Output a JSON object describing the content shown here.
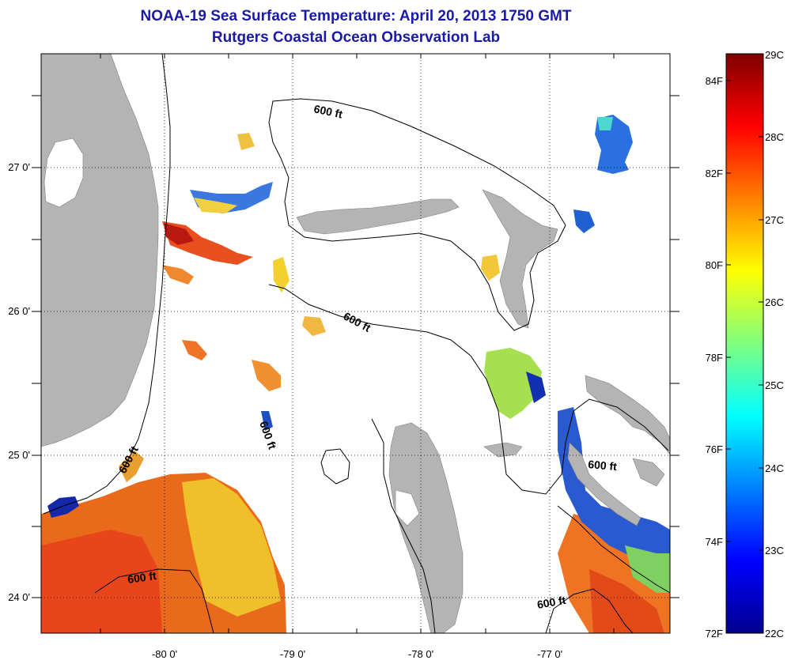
{
  "header": {
    "title": "NOAA-19 Sea Surface Temperature:  April 20, 2013 1750 GMT",
    "subtitle": "Rutgers Coastal Ocean Observation Lab"
  },
  "map": {
    "lon_ticks": [
      {
        "value": -80,
        "label": "-80 0'"
      },
      {
        "value": -79,
        "label": "-79 0'"
      },
      {
        "value": -78,
        "label": "-78 0'"
      },
      {
        "value": -77,
        "label": "-77 0'"
      }
    ],
    "lat_ticks": [
      {
        "value": 27,
        "label": "27 0'"
      },
      {
        "value": 26,
        "label": "26 0'"
      },
      {
        "value": 25,
        "label": "25 0'"
      },
      {
        "value": 24,
        "label": "24 0'"
      }
    ],
    "lon_range": [
      -80.97,
      -76.1
    ],
    "lat_range": [
      23.73,
      27.8
    ],
    "contour_label": "600 ft",
    "grid": true
  },
  "colorbar": {
    "celsius": [
      {
        "value": 29,
        "label": "29C"
      },
      {
        "value": 28,
        "label": "28C"
      },
      {
        "value": 27,
        "label": "27C"
      },
      {
        "value": 26,
        "label": "26C"
      },
      {
        "value": 25,
        "label": "25C"
      },
      {
        "value": 24,
        "label": "24C"
      },
      {
        "value": 23,
        "label": "23C"
      },
      {
        "value": 22,
        "label": "22C"
      }
    ],
    "fahrenheit": [
      {
        "value": 84,
        "label": "84F"
      },
      {
        "value": 82,
        "label": "82F"
      },
      {
        "value": 80,
        "label": "80F"
      },
      {
        "value": 78,
        "label": "78F"
      },
      {
        "value": 76,
        "label": "76F"
      },
      {
        "value": 74,
        "label": "74F"
      },
      {
        "value": 72,
        "label": "72F"
      }
    ],
    "range_c": [
      22,
      29
    ],
    "colormap": "jet"
  },
  "colors": {
    "title": "#1a1aa6",
    "land": "#b4b4b4",
    "warm": "#e8601a",
    "cool": "#00008f"
  }
}
